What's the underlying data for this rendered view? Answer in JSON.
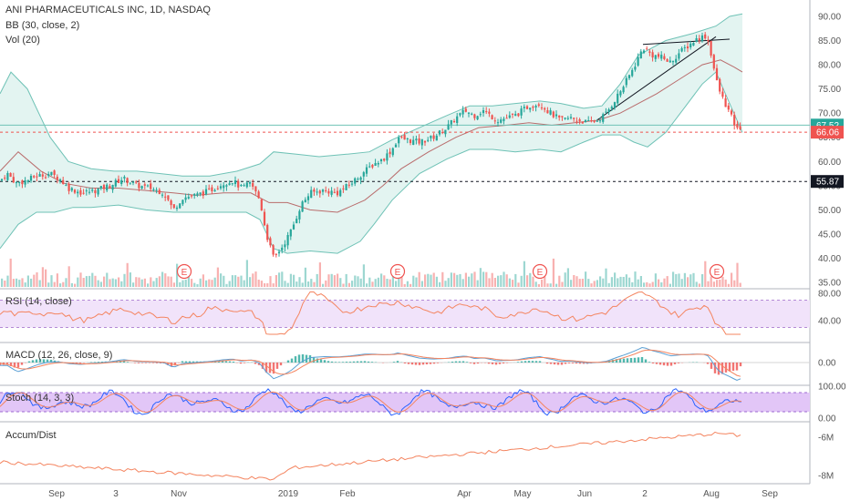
{
  "header": {
    "title": "ANI PHARMACEUTICALS INC, 1D, NASDAQ",
    "study_bb": "BB (30, close, 2)",
    "study_vol": "Vol (20)"
  },
  "panes": {
    "rsi": {
      "title": "RSI (14, close)",
      "ticks": [
        "80.00",
        "40.00"
      ]
    },
    "macd": {
      "title": "MACD (12, 26, close, 9)",
      "ticks": [
        "0.00"
      ]
    },
    "stoch": {
      "title": "Stoch (14, 3, 3)",
      "ticks": [
        "100.00",
        "0.00"
      ]
    },
    "ad": {
      "title": "Accum/Dist",
      "ticks": [
        "-6M",
        "-8M"
      ]
    }
  },
  "x_labels": [
    "Sep",
    "3",
    "Nov",
    "2019",
    "Feb",
    "Apr",
    "May",
    "Jun",
    "2",
    "Aug",
    "Sep"
  ],
  "earnings_marker": "E",
  "colors": {
    "up": "#26a69a",
    "down": "#ef5350",
    "bb_fill": "#e3f4f1",
    "bb_line": "#6fc2b6",
    "bb_mid": "#b96c6c",
    "rsi_band": "#f1e3fa",
    "stoch_band": "#e2c6f7",
    "osc_line": "#f4845f",
    "signal_line": "#5a9fd4",
    "price_badge_up": "#26a69a",
    "price_badge_down": "#ef5350",
    "price_badge_dark": "#131722"
  },
  "chart_data": {
    "type": "candlestick",
    "title": "ANI PHARMACEUTICALS INC, 1D, NASDAQ",
    "y_ticks": [
      "90.00",
      "85.00",
      "80.00",
      "75.00",
      "70.00",
      "65.00",
      "60.00",
      "55.00",
      "50.00",
      "45.00",
      "40.00",
      "35.00"
    ],
    "ylim": [
      33,
      92
    ],
    "price_badges": {
      "last": "67.52",
      "prev": "66.06",
      "level": "55.87"
    },
    "close_path": [
      [
        0,
        56.0
      ],
      [
        8,
        57.5
      ],
      [
        18,
        55.5
      ],
      [
        28,
        56.0
      ],
      [
        40,
        57.0
      ],
      [
        55,
        57.5
      ],
      [
        65,
        56.5
      ],
      [
        75,
        54.5
      ],
      [
        90,
        53.5
      ],
      [
        105,
        54.0
      ],
      [
        120,
        55.0
      ],
      [
        135,
        56.5
      ],
      [
        150,
        55.0
      ],
      [
        165,
        54.5
      ],
      [
        180,
        53.5
      ],
      [
        190,
        50.0
      ],
      [
        200,
        52.5
      ],
      [
        215,
        53.0
      ],
      [
        230,
        54.0
      ],
      [
        245,
        55.5
      ],
      [
        255,
        56.0
      ],
      [
        265,
        54.5
      ],
      [
        275,
        55.5
      ],
      [
        285,
        52.0
      ],
      [
        292,
        45.0
      ],
      [
        300,
        40.0
      ],
      [
        310,
        42.5
      ],
      [
        320,
        46.0
      ],
      [
        330,
        51.0
      ],
      [
        340,
        53.5
      ],
      [
        355,
        54.0
      ],
      [
        370,
        53.5
      ],
      [
        385,
        55.5
      ],
      [
        400,
        58.0
      ],
      [
        410,
        59.5
      ],
      [
        420,
        60.5
      ],
      [
        430,
        62.5
      ],
      [
        437,
        65.0
      ],
      [
        445,
        64.5
      ],
      [
        460,
        64.0
      ],
      [
        475,
        65.0
      ],
      [
        490,
        67.0
      ],
      [
        500,
        69.0
      ],
      [
        510,
        70.5
      ],
      [
        520,
        69.5
      ],
      [
        530,
        70.5
      ],
      [
        545,
        68.5
      ],
      [
        555,
        69.0
      ],
      [
        565,
        69.5
      ],
      [
        580,
        71.5
      ],
      [
        592,
        72.0
      ],
      [
        600,
        70.5
      ],
      [
        615,
        68.5
      ],
      [
        625,
        69.0
      ],
      [
        635,
        68.5
      ],
      [
        645,
        68.0
      ],
      [
        655,
        68.5
      ],
      [
        665,
        70.0
      ],
      [
        675,
        73.0
      ],
      [
        685,
        76.0
      ],
      [
        695,
        79.5
      ],
      [
        705,
        83.5
      ],
      [
        715,
        82.0
      ],
      [
        725,
        81.5
      ],
      [
        735,
        80.5
      ],
      [
        745,
        82.5
      ],
      [
        755,
        84.0
      ],
      [
        765,
        85.5
      ],
      [
        775,
        86.0
      ],
      [
        780,
        82.0
      ],
      [
        785,
        77.0
      ],
      [
        790,
        74.0
      ],
      [
        795,
        72.0
      ],
      [
        800,
        70.0
      ],
      [
        808,
        66.5
      ],
      [
        814,
        67.52
      ]
    ],
    "bb_upper": [
      [
        0,
        74.0
      ],
      [
        12,
        78.5
      ],
      [
        30,
        75.0
      ],
      [
        55,
        65.0
      ],
      [
        75,
        60.0
      ],
      [
        100,
        58.5
      ],
      [
        125,
        58.0
      ],
      [
        150,
        58.0
      ],
      [
        175,
        57.5
      ],
      [
        200,
        57.0
      ],
      [
        230,
        57.0
      ],
      [
        260,
        58.0
      ],
      [
        285,
        59.5
      ],
      [
        300,
        62.0
      ],
      [
        325,
        61.5
      ],
      [
        350,
        61.0
      ],
      [
        380,
        61.5
      ],
      [
        405,
        62.0
      ],
      [
        430,
        64.5
      ],
      [
        460,
        67.0
      ],
      [
        490,
        69.5
      ],
      [
        515,
        71.5
      ],
      [
        540,
        71.5
      ],
      [
        565,
        72.0
      ],
      [
        592,
        72.5
      ],
      [
        615,
        72.0
      ],
      [
        640,
        71.0
      ],
      [
        660,
        71.5
      ],
      [
        680,
        76.0
      ],
      [
        700,
        82.0
      ],
      [
        730,
        85.0
      ],
      [
        760,
        86.5
      ],
      [
        785,
        88.0
      ],
      [
        800,
        90.0
      ],
      [
        814,
        90.5
      ]
    ],
    "bb_lower": [
      [
        0,
        42.0
      ],
      [
        20,
        47.0
      ],
      [
        40,
        49.5
      ],
      [
        60,
        49.5
      ],
      [
        80,
        50.5
      ],
      [
        100,
        50.5
      ],
      [
        130,
        51.0
      ],
      [
        160,
        50.0
      ],
      [
        190,
        49.5
      ],
      [
        215,
        49.5
      ],
      [
        245,
        49.5
      ],
      [
        270,
        49.5
      ],
      [
        285,
        48.0
      ],
      [
        300,
        42.0
      ],
      [
        315,
        41.0
      ],
      [
        340,
        41.5
      ],
      [
        370,
        41.0
      ],
      [
        395,
        43.5
      ],
      [
        410,
        47.0
      ],
      [
        430,
        52.0
      ],
      [
        460,
        57.5
      ],
      [
        490,
        60.5
      ],
      [
        515,
        62.5
      ],
      [
        540,
        62.5
      ],
      [
        565,
        62.0
      ],
      [
        592,
        62.5
      ],
      [
        615,
        62.0
      ],
      [
        640,
        64.0
      ],
      [
        660,
        65.5
      ],
      [
        680,
        65.5
      ],
      [
        695,
        64.0
      ],
      [
        710,
        63.0
      ],
      [
        730,
        66.0
      ],
      [
        750,
        71.0
      ],
      [
        770,
        76.0
      ],
      [
        785,
        78.5
      ],
      [
        800,
        72.0
      ],
      [
        814,
        66.0
      ]
    ],
    "bb_mid": [
      [
        0,
        58.0
      ],
      [
        20,
        62.0
      ],
      [
        45,
        58.0
      ],
      [
        70,
        55.5
      ],
      [
        100,
        54.5
      ],
      [
        130,
        54.5
      ],
      [
        160,
        54.0
      ],
      [
        190,
        53.5
      ],
      [
        215,
        53.0
      ],
      [
        245,
        53.5
      ],
      [
        275,
        53.5
      ],
      [
        295,
        51.5
      ],
      [
        315,
        51.5
      ],
      [
        340,
        50.0
      ],
      [
        370,
        49.5
      ],
      [
        400,
        52.0
      ],
      [
        420,
        55.0
      ],
      [
        440,
        58.5
      ],
      [
        470,
        62.0
      ],
      [
        500,
        65.0
      ],
      [
        525,
        67.0
      ],
      [
        555,
        67.5
      ],
      [
        580,
        68.0
      ],
      [
        605,
        67.5
      ],
      [
        630,
        68.0
      ],
      [
        655,
        68.5
      ],
      [
        680,
        70.0
      ],
      [
        700,
        72.0
      ],
      [
        720,
        74.0
      ],
      [
        745,
        77.0
      ],
      [
        770,
        80.0
      ],
      [
        790,
        81.0
      ],
      [
        805,
        79.5
      ],
      [
        814,
        78.5
      ]
    ],
    "volume_avg": 0.35,
    "rsi_range": [
      0,
      100
    ],
    "stoch_range": [
      0,
      100
    ],
    "earnings_x": [
      202,
      436,
      592,
      786
    ]
  }
}
